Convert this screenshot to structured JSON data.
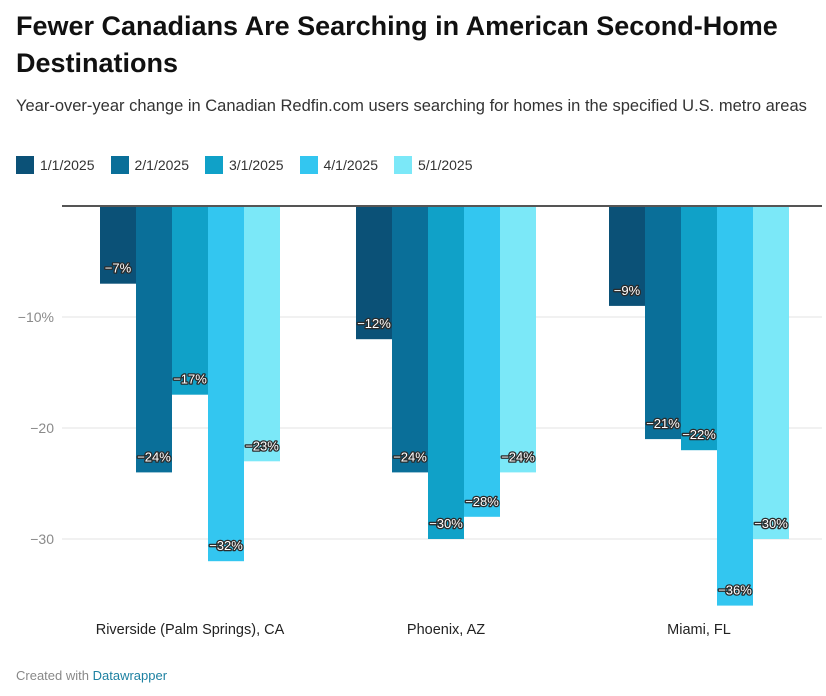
{
  "header": {
    "title": "Fewer Canadians Are Searching in American Second-Home Destinations",
    "subtitle": "Year-over-year change in Canadian Redfin.com users searching for homes in the specified U.S. metro areas"
  },
  "footer": {
    "created_with": "Created with",
    "brand": "Datawrapper"
  },
  "chart_data": {
    "type": "bar",
    "categories": [
      "Riverside (Palm Springs), CA",
      "Phoenix, AZ",
      "Miami, FL"
    ],
    "series": [
      {
        "name": "1/1/2025",
        "color": "#0b5177",
        "values": [
          -7,
          -12,
          -9
        ],
        "labels": [
          "−7%",
          "−12%",
          "−9%"
        ]
      },
      {
        "name": "2/1/2025",
        "color": "#0a6f99",
        "values": [
          -24,
          -24,
          -21
        ],
        "labels": [
          "−24%",
          "−24%",
          "−21%"
        ]
      },
      {
        "name": "3/1/2025",
        "color": "#10a1c8",
        "values": [
          -17,
          -30,
          -22
        ],
        "labels": [
          "−17%",
          "−30%",
          "−22%"
        ]
      },
      {
        "name": "4/1/2025",
        "color": "#33c6f0",
        "values": [
          -32,
          -28,
          -36
        ],
        "labels": [
          "−32%",
          "−28%",
          "−36%"
        ]
      },
      {
        "name": "5/1/2025",
        "color": "#7be8f8",
        "values": [
          -23,
          -24,
          -30
        ],
        "labels": [
          "−23%",
          "−24%",
          "−30%"
        ]
      }
    ],
    "y_ticks": [
      -10,
      -20,
      -30
    ],
    "y_tick_labels": [
      "−10%",
      "−20",
      "−30"
    ],
    "ylim": [
      -38,
      0
    ],
    "grid": true,
    "legend_position": "top-left"
  }
}
